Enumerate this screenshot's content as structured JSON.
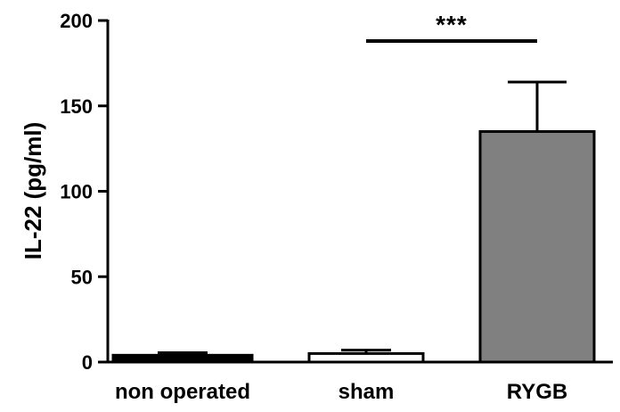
{
  "chart_data": {
    "type": "bar",
    "categories": [
      "non operated",
      "sham",
      "RYGB"
    ],
    "values": [
      4,
      5,
      135
    ],
    "error": [
      1.5,
      2,
      29
    ],
    "bar_colors": [
      "#000000",
      "#ffffff",
      "#808080"
    ],
    "ylabel": "IL-22 (pg/ml)",
    "xlabel": "",
    "ylim": [
      0,
      200
    ],
    "yticks": [
      0,
      50,
      100,
      150,
      200
    ],
    "ytick_labels": [
      "0",
      "50",
      "100",
      "150",
      "200"
    ],
    "significance": {
      "label": "***",
      "from": "sham",
      "to": "RYGB"
    }
  }
}
